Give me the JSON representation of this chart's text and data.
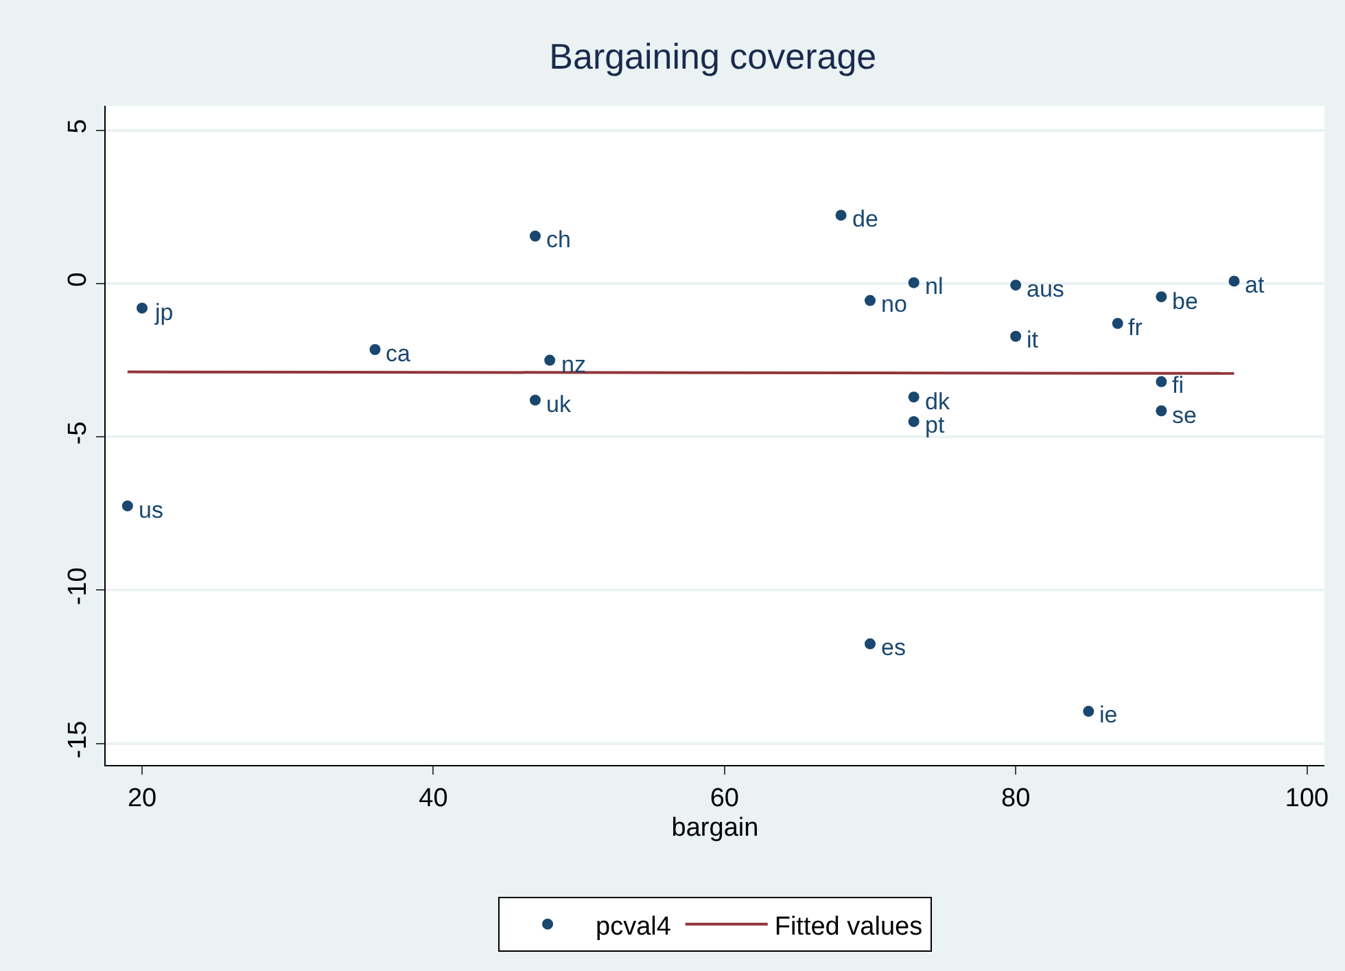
{
  "chart_data": {
    "type": "scatter",
    "title": "Bargaining coverage",
    "xlabel": "bargain",
    "xlim": [
      17.5,
      101.2
    ],
    "xticks": [
      20,
      40,
      60,
      80,
      100
    ],
    "ylim": [
      -15.7,
      5.8
    ],
    "yticks": [
      -15,
      -10,
      -5,
      0,
      5
    ],
    "grid": "y",
    "legend": "bottom",
    "series": [
      {
        "name": "pcval4",
        "color": "#1a476f",
        "marker": "circle",
        "x": [
          20,
          19,
          36,
          47,
          48,
          47,
          68,
          70,
          73,
          80,
          80,
          87,
          90,
          95,
          90,
          90,
          73,
          73,
          70,
          85
        ],
        "values": [
          -0.8,
          -7.25,
          -2.15,
          1.55,
          -2.5,
          -3.8,
          2.23,
          -0.55,
          0.03,
          -0.05,
          -1.72,
          -1.3,
          -0.43,
          0.08,
          -3.2,
          -4.15,
          -3.7,
          -4.5,
          -11.75,
          -13.95
        ]
      },
      {
        "name": "Fitted values",
        "type": "line",
        "marker": "none",
        "color": "#90353b",
        "x": [
          19,
          95
        ],
        "values": [
          -2.88,
          -2.93
        ]
      }
    ],
    "annotations": [
      {
        "text": "jp",
        "x": 20,
        "y": -0.8
      },
      {
        "text": "us",
        "x": 19,
        "y": -7.25
      },
      {
        "text": "ca",
        "x": 36,
        "y": -2.15
      },
      {
        "text": "ch",
        "x": 47,
        "y": 1.55
      },
      {
        "text": "nz",
        "x": 48,
        "y": -2.5
      },
      {
        "text": "uk",
        "x": 47,
        "y": -3.8
      },
      {
        "text": "de",
        "x": 68,
        "y": 2.23
      },
      {
        "text": "no",
        "x": 70,
        "y": -0.55
      },
      {
        "text": "nl",
        "x": 73,
        "y": 0.03
      },
      {
        "text": "aus",
        "x": 80,
        "y": -0.05
      },
      {
        "text": "it",
        "x": 80,
        "y": -1.72
      },
      {
        "text": "fr",
        "x": 87,
        "y": -1.3
      },
      {
        "text": "be",
        "x": 90,
        "y": -0.43
      },
      {
        "text": "at",
        "x": 95,
        "y": 0.08
      },
      {
        "text": "fi",
        "x": 90,
        "y": -3.2
      },
      {
        "text": "se",
        "x": 90,
        "y": -4.15
      },
      {
        "text": "dk",
        "x": 73,
        "y": -3.7
      },
      {
        "text": "pt",
        "x": 73,
        "y": -4.5
      },
      {
        "text": "es",
        "x": 70,
        "y": -11.75
      },
      {
        "text": "ie",
        "x": 85,
        "y": -13.95
      }
    ]
  }
}
